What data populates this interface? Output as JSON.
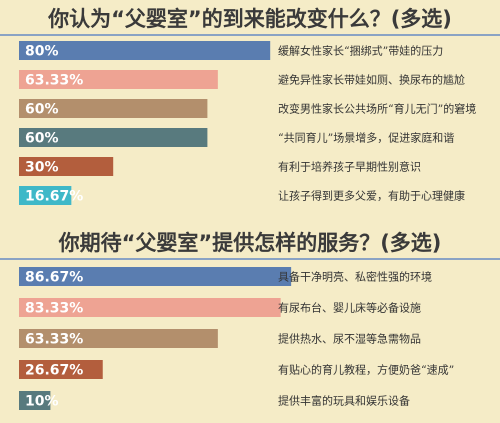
{
  "chart_data": [
    {
      "type": "bar",
      "orientation": "horizontal",
      "title": "你认为“父婴室”的到来能改变什么？(多选)",
      "unit": "%",
      "categories": [
        "缓解女性家长“捆绑式”带娃的压力",
        "避免异性家长带娃如厕、换尿布的尴尬",
        "改变男性家长公共场所“育儿无门”的窘境",
        "“共同育儿”场景增多，促进家庭和谐",
        "有利于培养孩子早期性别意识",
        "让孩子得到更多父爱，有助于心理健康"
      ],
      "values": [
        80,
        63.33,
        60,
        60,
        30,
        16.67
      ],
      "value_labels": [
        "80%",
        "63.33%",
        "60%",
        "60%",
        "30%",
        "16.67%"
      ],
      "colors": [
        "#5a7db0",
        "#eea393",
        "#b38f6c",
        "#587a7e",
        "#b35e3d",
        "#3fb8c8"
      ],
      "xlim": [
        0,
        100
      ]
    },
    {
      "type": "bar",
      "orientation": "horizontal",
      "title": "你期待“父婴室”提供怎样的服务？(多选)",
      "unit": "%",
      "categories": [
        "具备干净明亮、私密性强的环境",
        "有尿布台、婴儿床等必备设施",
        "提供热水、尿不湿等急需物品",
        "有贴心的育儿教程，方便奶爸“速成”",
        "提供丰富的玩具和娱乐设备"
      ],
      "values": [
        86.67,
        83.33,
        63.33,
        26.67,
        10
      ],
      "value_labels": [
        "86.67%",
        "83.33%",
        "63.33%",
        "26.67%",
        "10%"
      ],
      "colors": [
        "#5a7db0",
        "#eea393",
        "#b38f6c",
        "#b35e3d",
        "#587a7e"
      ],
      "xlim": [
        0,
        100
      ]
    }
  ]
}
